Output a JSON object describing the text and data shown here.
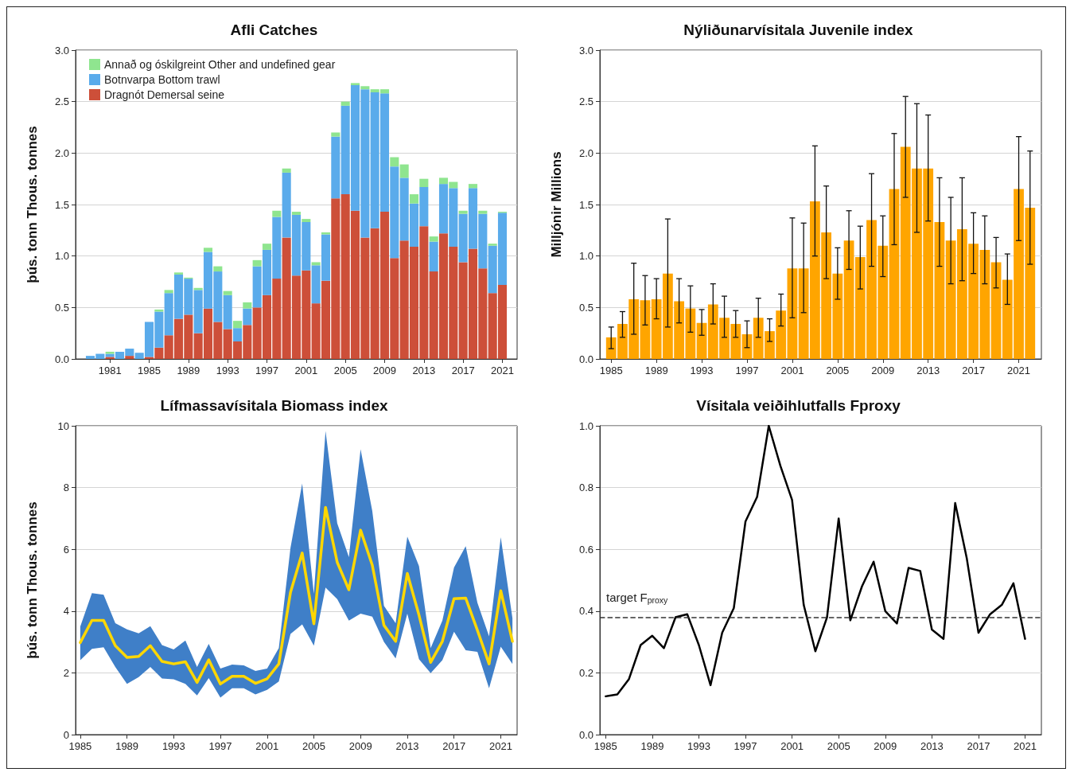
{
  "chart_data": [
    {
      "type": "bar",
      "title": "Afli Catches",
      "ylabel": "þús. tonn Thous. tonnes",
      "stacked": true,
      "legend": "top left",
      "grid": "y",
      "x": [
        1979,
        1980,
        1981,
        1982,
        1983,
        1984,
        1985,
        1986,
        1987,
        1988,
        1989,
        1990,
        1991,
        1992,
        1993,
        1994,
        1995,
        1996,
        1997,
        1998,
        1999,
        2000,
        2001,
        2002,
        2003,
        2004,
        2005,
        2006,
        2007,
        2008,
        2009,
        2010,
        2011,
        2012,
        2013,
        2014,
        2015,
        2016,
        2017,
        2018,
        2019,
        2020,
        2021
      ],
      "series": [
        {
          "name": "Dragnót Demersal seine",
          "color": "#cd4f39",
          "values": [
            0,
            0,
            0.02,
            0,
            0.03,
            0,
            0.02,
            0.11,
            0.23,
            0.39,
            0.43,
            0.25,
            0.49,
            0.36,
            0.29,
            0.17,
            0.33,
            0.5,
            0.62,
            0.78,
            1.18,
            0.81,
            0.86,
            0.54,
            0.76,
            1.56,
            1.6,
            1.44,
            1.18,
            1.27,
            1.43,
            0.98,
            1.15,
            1.09,
            1.29,
            0.85,
            1.22,
            1.09,
            0.94,
            1.07,
            0.88,
            0.64,
            0.72
          ]
        },
        {
          "name": "Botnvarpa Bottom trawl",
          "color": "#5aabeb",
          "values": [
            0.03,
            0.05,
            0.03,
            0.07,
            0.07,
            0.06,
            0.34,
            0.35,
            0.41,
            0.43,
            0.35,
            0.42,
            0.55,
            0.49,
            0.33,
            0.13,
            0.16,
            0.4,
            0.44,
            0.6,
            0.63,
            0.59,
            0.47,
            0.37,
            0.45,
            0.6,
            0.86,
            1.22,
            1.44,
            1.32,
            1.15,
            0.89,
            0.61,
            0.42,
            0.38,
            0.29,
            0.48,
            0.57,
            0.47,
            0.59,
            0.53,
            0.46,
            0.7
          ]
        },
        {
          "name": "Annað og óskilgreint Other and undefined gear",
          "color": "#8fe58f",
          "values": [
            0,
            0,
            0.02,
            0,
            0,
            0,
            0,
            0.02,
            0.03,
            0.02,
            0.01,
            0.02,
            0.04,
            0.05,
            0.04,
            0.07,
            0.06,
            0.06,
            0.06,
            0.06,
            0.04,
            0.03,
            0.03,
            0.03,
            0.02,
            0.04,
            0.04,
            0.02,
            0.03,
            0.03,
            0.04,
            0.09,
            0.13,
            0.09,
            0.08,
            0.05,
            0.06,
            0.06,
            0.03,
            0.04,
            0.03,
            0.02,
            0.01
          ]
        }
      ],
      "xlim": [
        1977.5,
        2022.5
      ],
      "xticks": [
        1981,
        1985,
        1989,
        1993,
        1997,
        2001,
        2005,
        2009,
        2013,
        2017,
        2021
      ],
      "ylim": [
        0,
        3
      ],
      "yticks": [
        {
          "value": 0,
          "label": "0.0"
        },
        0.5,
        {
          "value": 1,
          "label": "1.0"
        },
        1.5,
        {
          "value": 2,
          "label": "2.0"
        },
        2.5,
        {
          "value": 3,
          "label": "3.0"
        }
      ]
    },
    {
      "type": "bar",
      "title": "Nýliðunarvísitala Juvenile index",
      "ylabel": "Milljónir Millions",
      "grid": "y",
      "color": "#ffa500",
      "x": [
        1985,
        1986,
        1987,
        1988,
        1989,
        1990,
        1991,
        1992,
        1993,
        1994,
        1995,
        1996,
        1997,
        1998,
        1999,
        2000,
        2001,
        2002,
        2003,
        2004,
        2005,
        2006,
        2007,
        2008,
        2009,
        2010,
        2011,
        2012,
        2013,
        2014,
        2015,
        2016,
        2017,
        2018,
        2019,
        2020,
        2021,
        2022
      ],
      "values": [
        0.21,
        0.34,
        0.58,
        0.57,
        0.58,
        0.83,
        0.56,
        0.49,
        0.35,
        0.53,
        0.4,
        0.34,
        0.24,
        0.4,
        0.27,
        0.47,
        0.88,
        0.88,
        1.53,
        1.23,
        0.83,
        1.15,
        0.99,
        1.35,
        1.1,
        1.65,
        2.06,
        1.85,
        1.85,
        1.33,
        1.15,
        1.26,
        1.12,
        1.06,
        0.94,
        0.77,
        1.65,
        1.47
      ],
      "errors": [
        [
          0.1,
          0.31
        ],
        [
          0.21,
          0.46
        ],
        [
          0.24,
          0.93
        ],
        [
          0.33,
          0.81
        ],
        [
          0.39,
          0.78
        ],
        [
          0.31,
          1.36
        ],
        [
          0.35,
          0.78
        ],
        [
          0.26,
          0.71
        ],
        [
          0.23,
          0.48
        ],
        [
          0.34,
          0.73
        ],
        [
          0.21,
          0.61
        ],
        [
          0.21,
          0.47
        ],
        [
          0.11,
          0.37
        ],
        [
          0.21,
          0.59
        ],
        [
          0.17,
          0.39
        ],
        [
          0.32,
          0.63
        ],
        [
          0.4,
          1.37
        ],
        [
          0.45,
          1.32
        ],
        [
          1,
          2.07
        ],
        [
          0.78,
          1.68
        ],
        [
          0.58,
          1.08
        ],
        [
          0.87,
          1.44
        ],
        [
          0.68,
          1.29
        ],
        [
          0.9,
          1.8
        ],
        [
          0.8,
          1.39
        ],
        [
          1.11,
          2.19
        ],
        [
          1.57,
          2.55
        ],
        [
          1.23,
          2.48
        ],
        [
          1.34,
          2.37
        ],
        [
          0.9,
          1.76
        ],
        [
          0.73,
          1.57
        ],
        [
          0.76,
          1.76
        ],
        [
          0.83,
          1.42
        ],
        [
          0.73,
          1.39
        ],
        [
          0.69,
          1.18
        ],
        [
          0.53,
          1.02
        ],
        [
          1.15,
          2.16
        ],
        [
          0.92,
          2.02
        ]
      ],
      "xlim": [
        1984,
        2023
      ],
      "xticks": [
        1985,
        1989,
        1993,
        1997,
        2001,
        2005,
        2009,
        2013,
        2017,
        2021
      ],
      "ylim": [
        0,
        3
      ],
      "yticks": [
        {
          "value": 0,
          "label": "0.0"
        },
        0.5,
        {
          "value": 1,
          "label": "1.0"
        },
        1.5,
        {
          "value": 2,
          "label": "2.0"
        },
        2.5,
        {
          "value": 3,
          "label": "3.0"
        }
      ]
    },
    {
      "type": "line",
      "title": "Lífmassavísitala Biomass index",
      "ylabel": "þús. tonn Thous. tonnes",
      "grid": "y",
      "x": [
        1985,
        1986,
        1987,
        1988,
        1989,
        1990,
        1991,
        1992,
        1993,
        1994,
        1995,
        1996,
        1997,
        1998,
        1999,
        2000,
        2001,
        2002,
        2003,
        2004,
        2005,
        2006,
        2007,
        2008,
        2009,
        2010,
        2011,
        2012,
        2013,
        2014,
        2015,
        2016,
        2017,
        2018,
        2019,
        2020,
        2021,
        2022
      ],
      "series": [
        {
          "color": "#ffd700",
          "values": [
            2.98,
            3.7,
            3.7,
            2.88,
            2.5,
            2.53,
            2.88,
            2.37,
            2.29,
            2.36,
            1.69,
            2.42,
            1.64,
            1.89,
            1.89,
            1.66,
            1.81,
            2.29,
            4.61,
            5.88,
            3.59,
            7.36,
            5.58,
            4.69,
            6.62,
            5.49,
            3.54,
            3.02,
            5.22,
            3.87,
            2.34,
            3.02,
            4.4,
            4.42,
            3.38,
            2.29,
            4.66,
            3.02
          ],
          "lower": [
            2.41,
            2.78,
            2.83,
            2.19,
            1.64,
            1.86,
            2.19,
            1.82,
            1.79,
            1.64,
            1.27,
            1.83,
            1.2,
            1.5,
            1.5,
            1.3,
            1.45,
            1.72,
            3.26,
            3.57,
            2.88,
            4.76,
            4.39,
            3.69,
            3.92,
            3.82,
            3,
            2.47,
            3.92,
            2.44,
            1.99,
            2.41,
            3.33,
            2.73,
            2.68,
            1.5,
            2.85,
            2.29
          ],
          "upper": [
            3.5,
            4.58,
            4.53,
            3.61,
            3.41,
            3.28,
            3.51,
            2.9,
            2.76,
            3.05,
            2.19,
            2.94,
            2.14,
            2.27,
            2.24,
            2.06,
            2.14,
            2.8,
            6.05,
            8.13,
            4.56,
            9.83,
            6.84,
            5.75,
            9.24,
            7.24,
            4.17,
            3.61,
            6.41,
            5.46,
            2.8,
            3.69,
            5.41,
            6.1,
            4.27,
            3.18,
            6.39,
            3.77
          ]
        }
      ],
      "xlim": [
        1984.6,
        2022.4
      ],
      "xticks": [
        1985,
        1989,
        1993,
        1997,
        2001,
        2005,
        2009,
        2013,
        2017,
        2021
      ],
      "ylim": [
        0,
        10
      ],
      "yticks": [
        0,
        2,
        4,
        6,
        8,
        10
      ]
    },
    {
      "type": "line",
      "title": "Vísitala veiðihlutfalls Fproxy",
      "grid": "y",
      "color": "#000000",
      "line_style": "solid",
      "x": [
        1985,
        1986,
        1987,
        1988,
        1989,
        1990,
        1991,
        1992,
        1993,
        1994,
        1995,
        1996,
        1997,
        1998,
        1999,
        2000,
        2001,
        2002,
        2003,
        2004,
        2005,
        2006,
        2007,
        2008,
        2009,
        2010,
        2011,
        2012,
        2013,
        2014,
        2015,
        2016,
        2017,
        2018,
        2019,
        2020,
        2021
      ],
      "values": [
        0.124,
        0.13,
        0.18,
        0.29,
        0.32,
        0.28,
        0.38,
        0.39,
        0.29,
        0.16,
        0.33,
        0.41,
        0.69,
        0.77,
        1,
        0.87,
        0.76,
        0.42,
        0.27,
        0.38,
        0.7,
        0.37,
        0.48,
        0.56,
        0.4,
        0.36,
        0.54,
        0.53,
        0.34,
        0.31,
        0.75,
        0.57,
        0.33,
        0.39,
        0.42,
        0.49,
        0.31
      ],
      "ref_lines": [
        {
          "axis": "y",
          "value": 0.38,
          "label": "target F$_{proxy}$",
          "line_style": "dashed",
          "color": "#333333"
        }
      ],
      "xlim": [
        1984.5,
        2022.4
      ],
      "xticks": [
        1985,
        1989,
        1993,
        1997,
        2001,
        2005,
        2009,
        2013,
        2017,
        2021
      ],
      "ylim": [
        0,
        1
      ],
      "yticks": [
        {
          "value": 0,
          "label": "0.0"
        },
        0.2,
        0.4,
        0.6,
        0.8,
        {
          "value": 1,
          "label": "1.0"
        }
      ]
    }
  ]
}
